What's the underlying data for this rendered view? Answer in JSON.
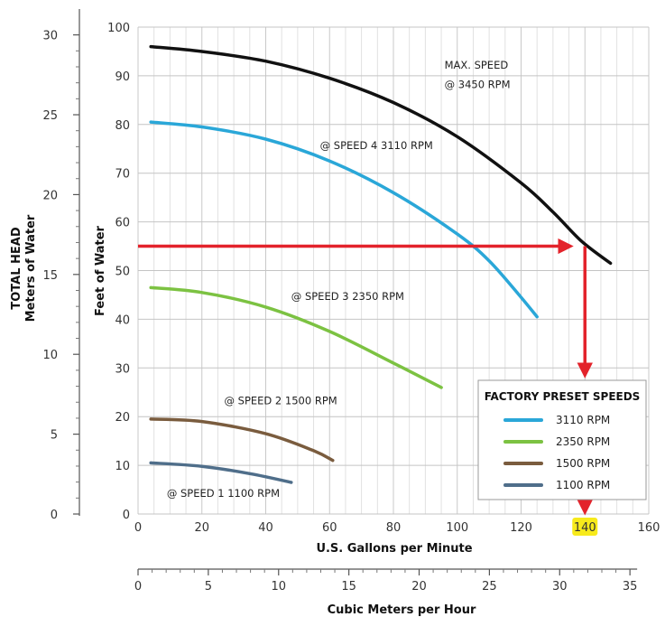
{
  "chart_data": {
    "type": "line",
    "x": {
      "label": "U.S. Gallons per Minute",
      "min": 0,
      "max": 160,
      "ticks": [
        0,
        20,
        40,
        60,
        80,
        100,
        120,
        140,
        160
      ],
      "tick_labels": [
        "0",
        "20",
        "40",
        "60",
        "80",
        "100",
        "120",
        "140",
        "160"
      ],
      "highlight_tick": 140,
      "highlight_color": "#f7ea1b"
    },
    "y": {
      "label": "Feet of Water",
      "min": 0,
      "max": 100,
      "ticks": [
        0,
        10,
        20,
        30,
        40,
        50,
        60,
        70,
        80,
        90,
        100
      ],
      "tick_labels": [
        "0",
        "10",
        "20",
        "30",
        "40",
        "50",
        "60",
        "70",
        "80",
        "90",
        "100"
      ]
    },
    "y2": {
      "label_line1": "TOTAL HEAD",
      "label_line2": "Meters of Water",
      "ticks": [
        0,
        5,
        10,
        15,
        20,
        25,
        30
      ],
      "tick_labels": [
        "0",
        "5",
        "10",
        "15",
        "20",
        "25",
        "30"
      ],
      "feet_per_unit": 3.28
    },
    "x2": {
      "label": "Cubic Meters per Hour",
      "ticks": [
        0,
        5,
        10,
        15,
        20,
        25,
        30,
        35
      ],
      "tick_labels": [
        "0",
        "5",
        "10",
        "15",
        "20",
        "25",
        "30",
        "35"
      ],
      "gpm_per_unit": 4.403
    },
    "grid": true,
    "series": [
      {
        "name": "3450 RPM",
        "color": "#111111",
        "x": [
          4,
          20,
          40,
          60,
          80,
          100,
          120,
          130,
          139,
          148
        ],
        "y": [
          96,
          95,
          93,
          89.5,
          84.5,
          77.5,
          68,
          62,
          56,
          51.5
        ]
      },
      {
        "name": "3110 RPM",
        "color": "#2aa7d8",
        "x": [
          4,
          20,
          40,
          60,
          80,
          100,
          110,
          120,
          125
        ],
        "y": [
          80.5,
          79.5,
          77,
          72.5,
          66,
          57.5,
          52,
          44.5,
          40.5
        ]
      },
      {
        "name": "2350 RPM",
        "color": "#7cc242",
        "x": [
          4,
          20,
          40,
          60,
          80,
          95
        ],
        "y": [
          46.5,
          45.5,
          42.5,
          37.5,
          31,
          26
        ]
      },
      {
        "name": "1500 RPM",
        "color": "#7a5c3e",
        "x": [
          4,
          20,
          40,
          55,
          61
        ],
        "y": [
          19.5,
          19,
          16.5,
          13,
          11
        ]
      },
      {
        "name": "1100 RPM",
        "color": "#4f6e8a",
        "x": [
          4,
          20,
          35,
          48
        ],
        "y": [
          10.5,
          9.8,
          8.3,
          6.5
        ]
      }
    ],
    "annotations": [
      {
        "text": "MAX. SPEED",
        "x": 96,
        "y": 91.5
      },
      {
        "text": "@ 3450 RPM",
        "x": 96,
        "y": 87.5
      },
      {
        "text": "@ SPEED 4 3110 RPM",
        "x": 57,
        "y": 75
      },
      {
        "text": "@ SPEED 3 2350 RPM",
        "x": 48,
        "y": 44
      },
      {
        "text": "@ SPEED 2 1500 RPM",
        "x": 27,
        "y": 22.5
      },
      {
        "text": "@ SPEED 1 1100 RPM",
        "x": 9,
        "y": 3.5
      }
    ],
    "operating_point": {
      "x": 140,
      "y": 55,
      "arrow_color": "#e3232b"
    },
    "legend": {
      "title": "FACTORY PRESET SPEEDS",
      "placement": "bottom-right",
      "entries": [
        {
          "label": "3110 RPM",
          "color": "#2aa7d8"
        },
        {
          "label": "2350 RPM",
          "color": "#7cc242"
        },
        {
          "label": "1500 RPM",
          "color": "#7a5c3e"
        },
        {
          "label": "1100 RPM",
          "color": "#4f6e8a"
        }
      ]
    }
  }
}
